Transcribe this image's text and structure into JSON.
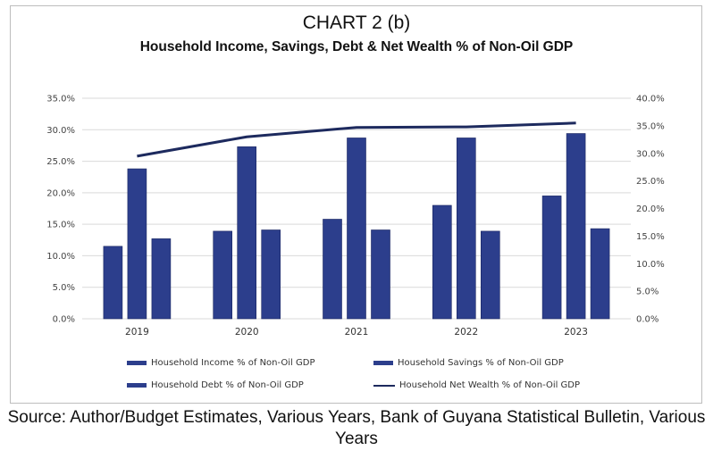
{
  "chart_data": {
    "type": "bar",
    "title": "CHART 2 (b)",
    "subtitle": "Household Income, Savings, Debt & Net Wealth % of Non-Oil GDP",
    "categories": [
      "2019",
      "2020",
      "2021",
      "2022",
      "2023"
    ],
    "series": [
      {
        "name": "Household Income % of Non-Oil GDP",
        "type": "bar",
        "axis": "left",
        "values": [
          11.5,
          13.9,
          15.8,
          18.0,
          19.5
        ]
      },
      {
        "name": "Household Savings % of Non-Oil GDP",
        "type": "bar",
        "axis": "left",
        "values": [
          23.8,
          27.3,
          28.7,
          28.7,
          29.4
        ]
      },
      {
        "name": "Household Debt % of Non-Oil GDP",
        "type": "bar",
        "axis": "left",
        "values": [
          12.7,
          14.1,
          14.1,
          13.9,
          14.3
        ]
      },
      {
        "name": "Household Net Wealth % of Non-Oil GDP",
        "type": "line",
        "axis": "right",
        "values": [
          29.5,
          33.0,
          34.7,
          34.8,
          35.5
        ]
      }
    ],
    "y_left": {
      "min": 0,
      "max": 35,
      "step": 5,
      "tick_labels": [
        "0.0%",
        "5.0%",
        "10.0%",
        "15.0%",
        "20.0%",
        "25.0%",
        "30.0%",
        "35.0%"
      ]
    },
    "y_right": {
      "min": 0,
      "max": 40,
      "step": 5,
      "tick_labels": [
        "0.0%",
        "5.0%",
        "10.0%",
        "15.0%",
        "20.0%",
        "25.0%",
        "30.0%",
        "35.0%",
        "40.0%"
      ]
    },
    "grid": true,
    "legend_position": "bottom",
    "colors": {
      "bar": "#2c3e8c",
      "bar_dark": "#1a2660",
      "line": "#1d2a5e",
      "grid": "#d9d9d9"
    }
  },
  "source_note": "Source: Author/Budget Estimates, Various Years, Bank of Guyana Statistical Bulletin, Various Years"
}
